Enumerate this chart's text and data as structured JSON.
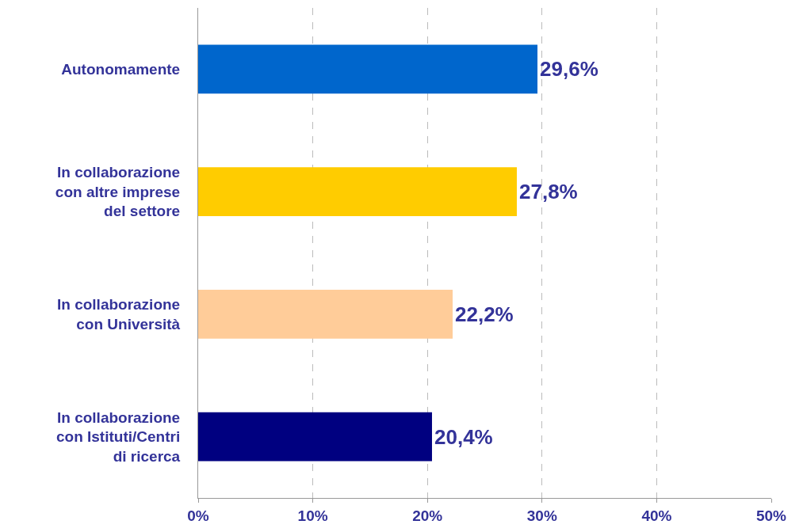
{
  "chart_data": {
    "type": "bar",
    "orientation": "horizontal",
    "categories": [
      "Autonomamente",
      "In collaborazione\ncon altre imprese\ndel settore",
      "In collaborazione\ncon Università",
      "In collaborazione\ncon Istituti/Centri\ndi ricerca"
    ],
    "values": [
      29.6,
      27.8,
      22.2,
      20.4
    ],
    "colors": [
      "#0066cc",
      "#ffcc00",
      "#ffcc99",
      "#000080"
    ],
    "value_labels": [
      "29,6%",
      "27,8%",
      "22,2%",
      "20,4%"
    ],
    "xlim": [
      0,
      50
    ],
    "xticks": [
      {
        "value": 0,
        "label": "0%"
      },
      {
        "value": 10,
        "label": "10%"
      },
      {
        "value": 20,
        "label": "20%"
      },
      {
        "value": 30,
        "label": "30%"
      },
      {
        "value": 40,
        "label": "40%"
      },
      {
        "value": 50,
        "label": "50%"
      }
    ],
    "grid": "x"
  }
}
